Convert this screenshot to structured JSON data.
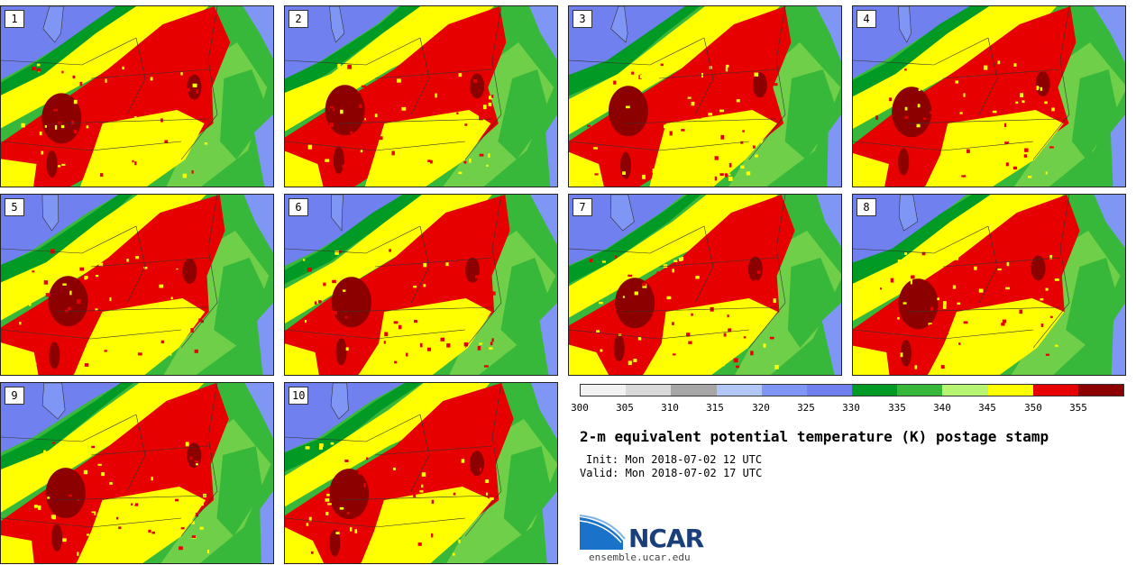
{
  "panels": [
    {
      "label": "1"
    },
    {
      "label": "2"
    },
    {
      "label": "3"
    },
    {
      "label": "4"
    },
    {
      "label": "5"
    },
    {
      "label": "6"
    },
    {
      "label": "7"
    },
    {
      "label": "8"
    },
    {
      "label": "9"
    },
    {
      "label": "10"
    }
  ],
  "colorbar": {
    "colors": [
      "#f2f2f2",
      "#d9d9d9",
      "#a6a6a6",
      "#b3c7f7",
      "#7f96f5",
      "#7080ee",
      "#009a25",
      "#38b83a",
      "#70cf48",
      "#b7f472",
      "#ffff00",
      "#e60000",
      "#8c0000"
    ],
    "labels": [
      "300",
      "305",
      "310",
      "315",
      "320",
      "325",
      "330",
      "335",
      "340",
      "345",
      "350",
      "355"
    ]
  },
  "title": "2-m equivalent potential temperature (K) postage stamp",
  "init": "Init: Mon 2018-07-02 12 UTC",
  "valid": "Valid: Mon 2018-07-02 17 UTC",
  "logo": {
    "name": "NCAR",
    "url": "ensemble.ucar.edu"
  }
}
